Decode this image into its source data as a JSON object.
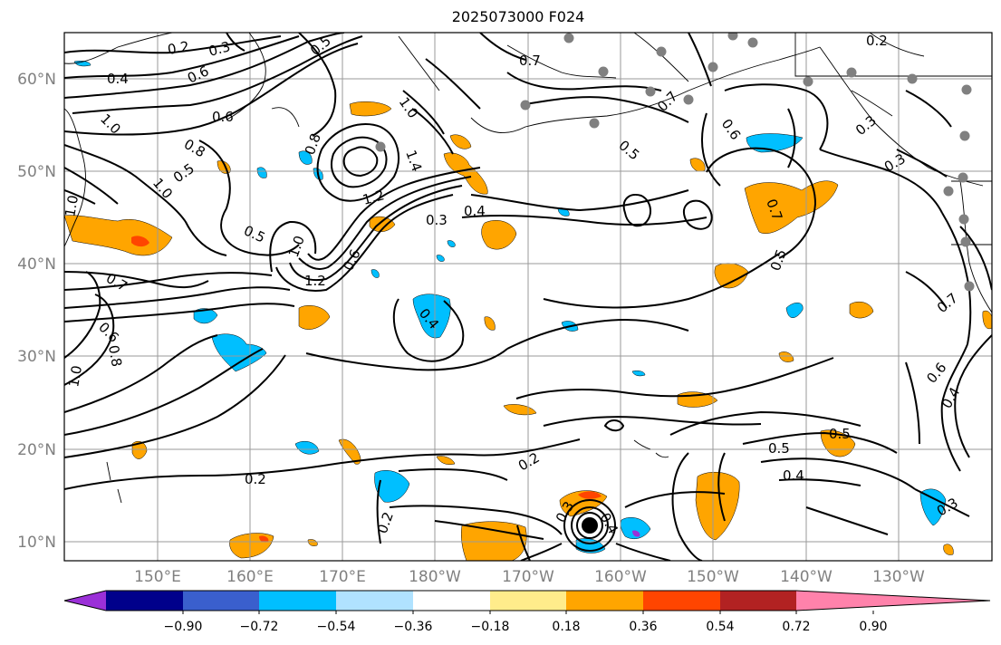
{
  "title": "2025073000 F024",
  "lat_labels": [
    "60°N",
    "50°N",
    "40°N",
    "30°N",
    "20°N",
    "10°N"
  ],
  "lon_labels": [
    "150°E",
    "160°E",
    "170°E",
    "180°W",
    "170°W",
    "160°W",
    "150°W",
    "140°W",
    "130°W"
  ],
  "colorbar": {
    "colors": [
      "#9b30d8",
      "#00008b",
      "#3a5fcd",
      "#00bfff",
      "#b0e2ff",
      "#ffffff",
      "#ffec8b",
      "#ffa500",
      "#ff4500",
      "#b22222",
      "#ff82ab"
    ],
    "tick_labels": [
      "−0.90",
      "−0.72",
      "−0.54",
      "−0.36",
      "−0.18",
      "0.18",
      "0.36",
      "0.54",
      "0.72",
      "0.90"
    ]
  },
  "contour_labels": [
    "0.2",
    "0.3",
    "0.5",
    "0.4",
    "0.6",
    "0.7",
    "1.0",
    "0.6",
    "0.8",
    "1.0",
    "1.0",
    "0.8",
    "1.0",
    "1.4",
    "1.2",
    "0.3",
    "0.4",
    "0.5",
    "1.0",
    "1.2",
    "0.6",
    "0.7",
    "0.6",
    "0.8",
    "1.0",
    "0.4",
    "0.2",
    "0.2",
    "0.2",
    "0.3",
    "0.4",
    "0.7",
    "0.5",
    "0.6",
    "0.7",
    "0.5",
    "0.5",
    "0.4",
    "0.5",
    "0.3",
    "0.7",
    "0.6",
    "0.4",
    "0.3",
    "0.2",
    "0.5",
    "0.3"
  ],
  "colors_misc": {
    "frame": "#000000",
    "grid": "#9a9a9a",
    "stations": "#808080",
    "center_marker": "#000000"
  }
}
